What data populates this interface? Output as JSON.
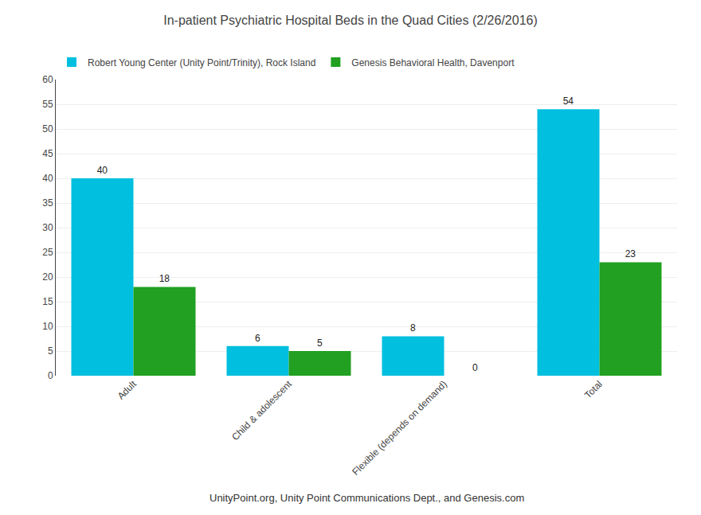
{
  "chart_data": {
    "type": "bar",
    "title": "In-patient Psychiatric Hospital Beds in the Quad Cities (2/26/2016)",
    "categories": [
      "Adult",
      "Child & adolescent",
      "Flexible (depends on demand)",
      "Total"
    ],
    "series": [
      {
        "name": "Robert Young Center (Unity Point/Trinity), Rock Island",
        "color": "#00BFDF",
        "values": [
          40,
          6,
          8,
          54
        ]
      },
      {
        "name": "Genesis Behavioral Health, Davenport",
        "color": "#21A021",
        "values": [
          18,
          5,
          0,
          23
        ]
      }
    ],
    "ylim": [
      0,
      60
    ],
    "yticks": [
      0,
      5,
      10,
      15,
      20,
      25,
      30,
      35,
      40,
      45,
      50,
      55,
      60
    ],
    "grid": true,
    "legend": "top",
    "data_labels": true,
    "footnote": "UnityPoint.org, Unity Point Communications Dept., and Genesis.com"
  }
}
